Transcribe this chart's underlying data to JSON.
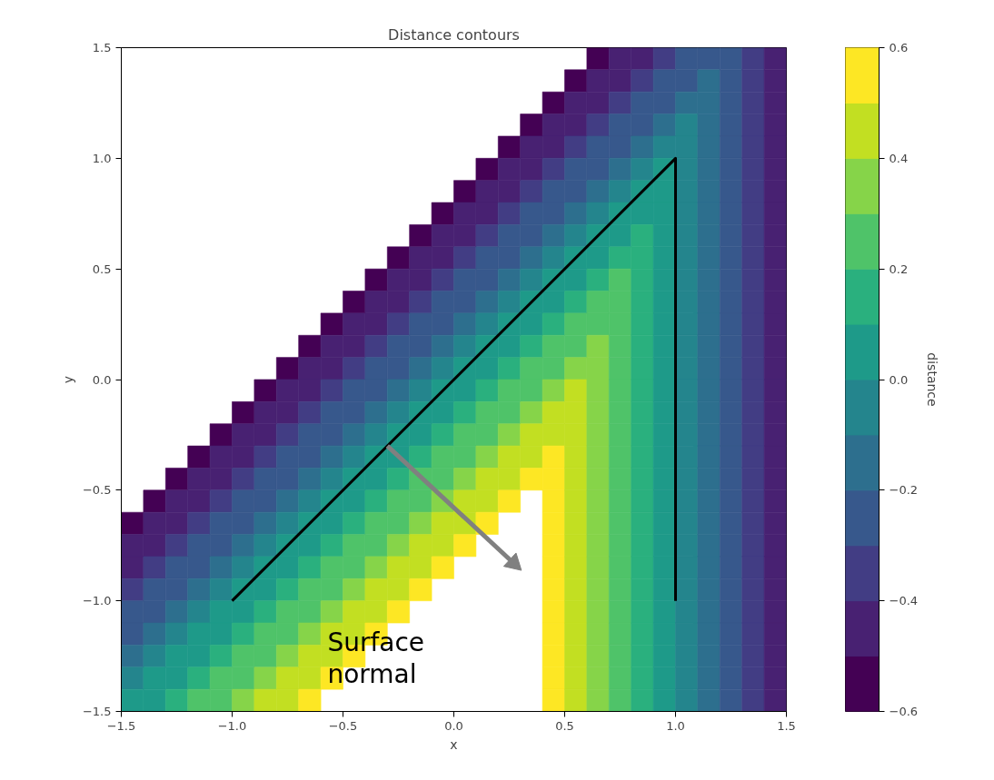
{
  "chart_data": {
    "type": "heatmap",
    "title": "Distance contours",
    "xlabel": "x",
    "ylabel": "y",
    "clabel": "distance",
    "x": [
      -1.45,
      -1.35,
      -1.25,
      -1.15,
      -1.05,
      -0.95,
      -0.85,
      -0.75,
      -0.65,
      -0.55,
      -0.45,
      -0.35,
      -0.25,
      -0.15,
      -0.05,
      0.05,
      0.15,
      0.25,
      0.35,
      0.45,
      0.55,
      0.65,
      0.75,
      0.85,
      0.95,
      1.05,
      1.15,
      1.25,
      1.35,
      1.45
    ],
    "y": [
      1.45,
      1.35,
      1.25,
      1.15,
      1.05,
      0.95,
      0.85,
      0.75,
      0.65,
      0.55,
      0.45,
      0.35,
      0.25,
      0.15,
      0.05,
      -0.05,
      -0.15,
      -0.25,
      -0.35,
      -0.45,
      -0.55,
      -0.65,
      -0.75,
      -0.85,
      -0.95,
      -1.05,
      -1.15,
      -1.25,
      -1.35,
      -1.45
    ],
    "cells": [
      [
        null,
        null,
        null,
        null,
        null,
        null,
        null,
        null,
        null,
        null,
        null,
        null,
        null,
        null,
        null,
        null,
        null,
        null,
        null,
        null,
        null,
        -0.55,
        -0.45,
        -0.45,
        -0.35,
        -0.25,
        -0.25,
        -0.25,
        -0.35,
        -0.45
      ],
      [
        null,
        null,
        null,
        null,
        null,
        null,
        null,
        null,
        null,
        null,
        null,
        null,
        null,
        null,
        null,
        null,
        null,
        null,
        null,
        null,
        -0.55,
        -0.45,
        -0.45,
        -0.35,
        -0.25,
        -0.25,
        -0.15,
        -0.25,
        -0.35,
        -0.45
      ],
      [
        null,
        null,
        null,
        null,
        null,
        null,
        null,
        null,
        null,
        null,
        null,
        null,
        null,
        null,
        null,
        null,
        null,
        null,
        null,
        -0.55,
        -0.45,
        -0.45,
        -0.35,
        -0.25,
        -0.25,
        -0.15,
        -0.15,
        -0.25,
        -0.35,
        -0.45
      ],
      [
        null,
        null,
        null,
        null,
        null,
        null,
        null,
        null,
        null,
        null,
        null,
        null,
        null,
        null,
        null,
        null,
        null,
        null,
        -0.55,
        -0.45,
        -0.45,
        -0.35,
        -0.25,
        -0.25,
        -0.15,
        -0.05,
        -0.15,
        -0.25,
        -0.35,
        -0.45
      ],
      [
        null,
        null,
        null,
        null,
        null,
        null,
        null,
        null,
        null,
        null,
        null,
        null,
        null,
        null,
        null,
        null,
        null,
        -0.55,
        -0.45,
        -0.45,
        -0.35,
        -0.25,
        -0.25,
        -0.15,
        -0.05,
        -0.05,
        -0.15,
        -0.25,
        -0.35,
        -0.45
      ],
      [
        null,
        null,
        null,
        null,
        null,
        null,
        null,
        null,
        null,
        null,
        null,
        null,
        null,
        null,
        null,
        null,
        -0.55,
        -0.45,
        -0.45,
        -0.35,
        -0.25,
        -0.25,
        -0.15,
        -0.05,
        0.05,
        -0.05,
        -0.15,
        -0.25,
        -0.35,
        -0.45
      ],
      [
        null,
        null,
        null,
        null,
        null,
        null,
        null,
        null,
        null,
        null,
        null,
        null,
        null,
        null,
        null,
        -0.55,
        -0.45,
        -0.45,
        -0.35,
        -0.25,
        -0.25,
        -0.15,
        -0.05,
        0.05,
        0.05,
        -0.05,
        -0.15,
        -0.25,
        -0.35,
        -0.45
      ],
      [
        null,
        null,
        null,
        null,
        null,
        null,
        null,
        null,
        null,
        null,
        null,
        null,
        null,
        null,
        -0.55,
        -0.45,
        -0.45,
        -0.35,
        -0.25,
        -0.25,
        -0.15,
        -0.05,
        0.05,
        0.05,
        0.05,
        -0.05,
        -0.15,
        -0.25,
        -0.35,
        -0.45
      ],
      [
        null,
        null,
        null,
        null,
        null,
        null,
        null,
        null,
        null,
        null,
        null,
        null,
        null,
        -0.55,
        -0.45,
        -0.45,
        -0.35,
        -0.25,
        -0.25,
        -0.15,
        -0.05,
        0.05,
        0.05,
        0.15,
        0.05,
        -0.05,
        -0.15,
        -0.25,
        -0.35,
        -0.45
      ],
      [
        null,
        null,
        null,
        null,
        null,
        null,
        null,
        null,
        null,
        null,
        null,
        null,
        -0.55,
        -0.45,
        -0.45,
        -0.35,
        -0.25,
        -0.25,
        -0.15,
        -0.05,
        0.05,
        0.05,
        0.15,
        0.15,
        0.05,
        -0.05,
        -0.15,
        -0.25,
        -0.35,
        -0.45
      ],
      [
        null,
        null,
        null,
        null,
        null,
        null,
        null,
        null,
        null,
        null,
        null,
        -0.55,
        -0.45,
        -0.45,
        -0.35,
        -0.25,
        -0.25,
        -0.15,
        -0.05,
        0.05,
        0.05,
        0.15,
        0.25,
        0.15,
        0.05,
        -0.05,
        -0.15,
        -0.25,
        -0.35,
        -0.45
      ],
      [
        null,
        null,
        null,
        null,
        null,
        null,
        null,
        null,
        null,
        null,
        -0.55,
        -0.45,
        -0.45,
        -0.35,
        -0.25,
        -0.25,
        -0.15,
        -0.05,
        0.05,
        0.05,
        0.15,
        0.25,
        0.25,
        0.15,
        0.05,
        -0.05,
        -0.15,
        -0.25,
        -0.35,
        -0.45
      ],
      [
        null,
        null,
        null,
        null,
        null,
        null,
        null,
        null,
        null,
        -0.55,
        -0.45,
        -0.45,
        -0.35,
        -0.25,
        -0.25,
        -0.15,
        -0.05,
        0.05,
        0.05,
        0.15,
        0.25,
        0.25,
        0.25,
        0.15,
        0.05,
        -0.05,
        -0.15,
        -0.25,
        -0.35,
        -0.45
      ],
      [
        null,
        null,
        null,
        null,
        null,
        null,
        null,
        null,
        -0.55,
        -0.45,
        -0.45,
        -0.35,
        -0.25,
        -0.25,
        -0.15,
        -0.05,
        0.05,
        0.05,
        0.15,
        0.25,
        0.25,
        0.35,
        0.25,
        0.15,
        0.05,
        -0.05,
        -0.15,
        -0.25,
        -0.35,
        -0.45
      ],
      [
        null,
        null,
        null,
        null,
        null,
        null,
        null,
        -0.55,
        -0.45,
        -0.45,
        -0.35,
        -0.25,
        -0.25,
        -0.15,
        -0.05,
        0.05,
        0.05,
        0.15,
        0.25,
        0.25,
        0.35,
        0.35,
        0.25,
        0.15,
        0.05,
        -0.05,
        -0.15,
        -0.25,
        -0.35,
        -0.45
      ],
      [
        null,
        null,
        null,
        null,
        null,
        null,
        -0.55,
        -0.45,
        -0.45,
        -0.35,
        -0.25,
        -0.25,
        -0.15,
        -0.05,
        0.05,
        0.05,
        0.15,
        0.25,
        0.25,
        0.35,
        0.45,
        0.35,
        0.25,
        0.15,
        0.05,
        -0.05,
        -0.15,
        -0.25,
        -0.35,
        -0.45
      ],
      [
        null,
        null,
        null,
        null,
        null,
        -0.55,
        -0.45,
        -0.45,
        -0.35,
        -0.25,
        -0.25,
        -0.15,
        -0.05,
        0.05,
        0.05,
        0.15,
        0.25,
        0.25,
        0.35,
        0.45,
        0.45,
        0.35,
        0.25,
        0.15,
        0.05,
        -0.05,
        -0.15,
        -0.25,
        -0.35,
        -0.45
      ],
      [
        null,
        null,
        null,
        null,
        -0.55,
        -0.45,
        -0.45,
        -0.35,
        -0.25,
        -0.25,
        -0.15,
        -0.05,
        0.05,
        0.05,
        0.15,
        0.25,
        0.25,
        0.35,
        0.45,
        0.45,
        0.45,
        0.35,
        0.25,
        0.15,
        0.05,
        -0.05,
        -0.15,
        -0.25,
        -0.35,
        -0.45
      ],
      [
        null,
        null,
        null,
        -0.55,
        -0.45,
        -0.45,
        -0.35,
        -0.25,
        -0.25,
        -0.15,
        -0.05,
        0.05,
        0.05,
        0.15,
        0.25,
        0.25,
        0.35,
        0.45,
        0.45,
        0.55,
        0.45,
        0.35,
        0.25,
        0.15,
        0.05,
        -0.05,
        -0.15,
        -0.25,
        -0.35,
        -0.45
      ],
      [
        null,
        null,
        -0.55,
        -0.45,
        -0.45,
        -0.35,
        -0.25,
        -0.25,
        -0.15,
        -0.05,
        0.05,
        0.05,
        0.15,
        0.25,
        0.25,
        0.35,
        0.45,
        0.45,
        0.55,
        0.55,
        0.45,
        0.35,
        0.25,
        0.15,
        0.05,
        -0.05,
        -0.15,
        -0.25,
        -0.35,
        -0.45
      ],
      [
        null,
        -0.55,
        -0.45,
        -0.45,
        -0.35,
        -0.25,
        -0.25,
        -0.15,
        -0.05,
        0.05,
        0.05,
        0.15,
        0.25,
        0.25,
        0.35,
        0.45,
        0.45,
        0.55,
        null,
        0.55,
        0.45,
        0.35,
        0.25,
        0.15,
        0.05,
        -0.05,
        -0.15,
        -0.25,
        -0.35,
        -0.45
      ],
      [
        -0.55,
        -0.45,
        -0.45,
        -0.35,
        -0.25,
        -0.25,
        -0.15,
        -0.05,
        0.05,
        0.05,
        0.15,
        0.25,
        0.25,
        0.35,
        0.45,
        0.45,
        0.55,
        null,
        null,
        0.55,
        0.45,
        0.35,
        0.25,
        0.15,
        0.05,
        -0.05,
        -0.15,
        -0.25,
        -0.35,
        -0.45
      ],
      [
        -0.45,
        -0.45,
        -0.35,
        -0.25,
        -0.25,
        -0.15,
        -0.05,
        0.05,
        0.05,
        0.15,
        0.25,
        0.25,
        0.35,
        0.45,
        0.45,
        0.55,
        null,
        null,
        null,
        0.55,
        0.45,
        0.35,
        0.25,
        0.15,
        0.05,
        -0.05,
        -0.15,
        -0.25,
        -0.35,
        -0.45
      ],
      [
        -0.45,
        -0.35,
        -0.25,
        -0.25,
        -0.15,
        -0.05,
        0.05,
        0.05,
        0.15,
        0.25,
        0.25,
        0.35,
        0.45,
        0.45,
        0.55,
        null,
        null,
        null,
        null,
        0.55,
        0.45,
        0.35,
        0.25,
        0.15,
        0.05,
        -0.05,
        -0.15,
        -0.25,
        -0.35,
        -0.45
      ],
      [
        -0.35,
        -0.25,
        -0.25,
        -0.15,
        -0.05,
        0.05,
        0.05,
        0.15,
        0.25,
        0.25,
        0.35,
        0.45,
        0.45,
        0.55,
        null,
        null,
        null,
        null,
        null,
        0.55,
        0.45,
        0.35,
        0.25,
        0.15,
        0.05,
        -0.05,
        -0.15,
        -0.25,
        -0.35,
        -0.45
      ],
      [
        -0.25,
        -0.25,
        -0.15,
        -0.05,
        0.05,
        0.05,
        0.15,
        0.25,
        0.25,
        0.35,
        0.45,
        0.45,
        0.55,
        null,
        null,
        null,
        null,
        null,
        null,
        0.55,
        0.45,
        0.35,
        0.25,
        0.15,
        0.05,
        -0.05,
        -0.15,
        -0.25,
        -0.35,
        -0.45
      ],
      [
        -0.25,
        -0.15,
        -0.05,
        0.05,
        0.05,
        0.15,
        0.25,
        0.25,
        0.35,
        0.45,
        0.45,
        0.55,
        null,
        null,
        null,
        null,
        null,
        null,
        null,
        0.55,
        0.45,
        0.35,
        0.25,
        0.15,
        0.05,
        -0.05,
        -0.15,
        -0.25,
        -0.35,
        -0.45
      ],
      [
        -0.15,
        -0.05,
        0.05,
        0.05,
        0.15,
        0.25,
        0.25,
        0.35,
        0.45,
        0.45,
        0.55,
        null,
        null,
        null,
        null,
        null,
        null,
        null,
        null,
        0.55,
        0.45,
        0.35,
        0.25,
        0.15,
        0.05,
        -0.05,
        -0.15,
        -0.25,
        -0.35,
        -0.45
      ],
      [
        -0.05,
        0.05,
        0.05,
        0.15,
        0.25,
        0.25,
        0.35,
        0.45,
        0.45,
        0.55,
        null,
        null,
        null,
        null,
        null,
        null,
        null,
        null,
        null,
        0.55,
        0.45,
        0.35,
        0.25,
        0.15,
        0.05,
        -0.05,
        -0.15,
        -0.25,
        -0.35,
        -0.45
      ],
      [
        0.05,
        0.05,
        0.15,
        0.25,
        0.25,
        0.35,
        0.45,
        0.45,
        0.55,
        null,
        null,
        null,
        null,
        null,
        null,
        null,
        null,
        null,
        null,
        0.55,
        0.45,
        0.35,
        0.25,
        0.15,
        0.05,
        -0.05,
        -0.15,
        -0.25,
        -0.35,
        -0.45
      ]
    ],
    "clim": [
      -0.6,
      0.6
    ],
    "cticks": [
      {
        "value": -0.6,
        "label": "−0.6"
      },
      {
        "value": -0.4,
        "label": "−0.4"
      },
      {
        "value": -0.2,
        "label": "−0.2"
      },
      {
        "value": 0,
        "label": "0.0"
      },
      {
        "value": 0.2,
        "label": "0.2"
      },
      {
        "value": 0.4,
        "label": "0.4"
      },
      {
        "value": 0.6,
        "label": "0.6"
      }
    ],
    "xlim": [
      -1.5,
      1.5
    ],
    "ylim": [
      -1.5,
      1.5
    ],
    "xticks": [
      {
        "value": -1.5,
        "label": "−1.5"
      },
      {
        "value": -1,
        "label": "−1.0"
      },
      {
        "value": -0.5,
        "label": "−0.5"
      },
      {
        "value": 0,
        "label": "0.0"
      },
      {
        "value": 0.5,
        "label": "0.5"
      },
      {
        "value": 1,
        "label": "1.0"
      },
      {
        "value": 1.5,
        "label": "1.5"
      }
    ],
    "yticks": [
      {
        "value": -1.5,
        "label": "−1.5"
      },
      {
        "value": -1,
        "label": "−1.0"
      },
      {
        "value": -0.5,
        "label": "−0.5"
      },
      {
        "value": 0,
        "label": "0.0"
      },
      {
        "value": 0.5,
        "label": "0.5"
      },
      {
        "value": 1,
        "label": "1.0"
      },
      {
        "value": 1.5,
        "label": "1.5"
      }
    ],
    "series": [
      {
        "type": "line",
        "color": "#000000",
        "x": [
          -1,
          1,
          1
        ],
        "values": [
          -1,
          1,
          -1
        ]
      },
      {
        "type": "line",
        "color": "#808080",
        "x": [
          -0.3,
          0.27
        ],
        "values": [
          -0.3,
          -0.83
        ]
      }
    ],
    "annotations": [
      "Surface normal"
    ]
  }
}
